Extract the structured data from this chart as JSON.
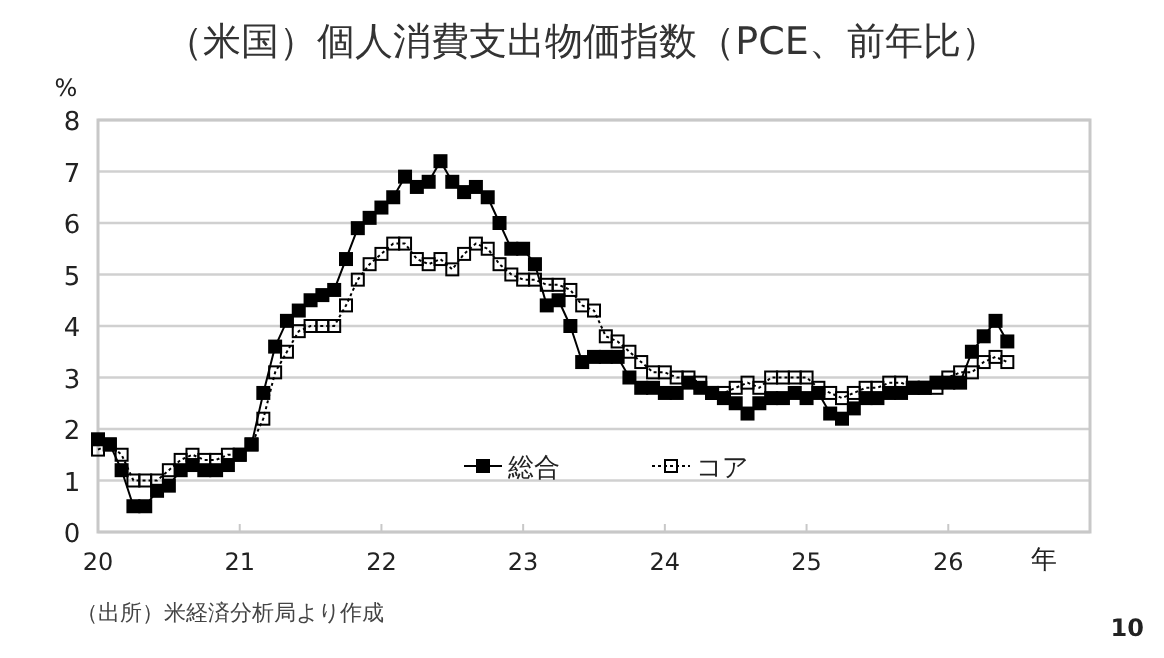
{
  "chart_data": {
    "type": "line",
    "title": "（米国）個人消費支出物価指数（PCE、前年比）",
    "ylabel": "%",
    "xlabel": "年",
    "xlim": [
      "2020-01",
      "2027-01"
    ],
    "xticks": [
      {
        "value": "2020-01",
        "label": "20"
      },
      {
        "value": "2021-01",
        "label": "21"
      },
      {
        "value": "2022-01",
        "label": "22"
      },
      {
        "value": "2023-01",
        "label": "23"
      },
      {
        "value": "2024-01",
        "label": "24"
      },
      {
        "value": "2025-01",
        "label": "25"
      },
      {
        "value": "2026-01",
        "label": "26"
      }
    ],
    "ylim": [
      0,
      8
    ],
    "yticks": [
      0,
      1,
      2,
      3,
      4,
      5,
      6,
      7,
      8
    ],
    "grid": "y",
    "legend": "bottom",
    "x": [
      "2020-01",
      "2020-02",
      "2020-03",
      "2020-04",
      "2020-05",
      "2020-06",
      "2020-07",
      "2020-08",
      "2020-09",
      "2020-10",
      "2020-11",
      "2020-12",
      "2021-01",
      "2021-02",
      "2021-03",
      "2021-04",
      "2021-05",
      "2021-06",
      "2021-07",
      "2021-08",
      "2021-09",
      "2021-10",
      "2021-11",
      "2021-12",
      "2022-01",
      "2022-02",
      "2022-03",
      "2022-04",
      "2022-05",
      "2022-06",
      "2022-07",
      "2022-08",
      "2022-09",
      "2022-10",
      "2022-11",
      "2022-12",
      "2023-01",
      "2023-02",
      "2023-03",
      "2023-04",
      "2023-05",
      "2023-06",
      "2023-07",
      "2023-08",
      "2023-09",
      "2023-10",
      "2023-11",
      "2023-12",
      "2024-01",
      "2024-02",
      "2024-03",
      "2024-04",
      "2024-05",
      "2024-06",
      "2024-07",
      "2024-08",
      "2024-09",
      "2024-10",
      "2024-11",
      "2024-12",
      "2025-01",
      "2025-02",
      "2025-03",
      "2025-04",
      "2025-05",
      "2025-06",
      "2025-07",
      "2025-08",
      "2025-09",
      "2025-10",
      "2025-11",
      "2025-12",
      "2026-01",
      "2026-02",
      "2026-03",
      "2026-04",
      "2026-05",
      "2026-06"
    ],
    "series": [
      {
        "name": "総合",
        "color": "#000000",
        "marker": "square",
        "line_style": "solid",
        "values": [
          1.8,
          1.7,
          1.2,
          0.5,
          0.5,
          0.8,
          0.9,
          1.2,
          1.3,
          1.2,
          1.2,
          1.3,
          1.5,
          1.7,
          2.7,
          3.6,
          4.1,
          4.3,
          4.5,
          4.6,
          4.7,
          5.3,
          5.9,
          6.1,
          6.3,
          6.5,
          6.9,
          6.7,
          6.8,
          7.2,
          6.8,
          6.6,
          6.7,
          6.5,
          6.0,
          5.5,
          5.5,
          5.2,
          4.4,
          4.5,
          4.0,
          3.3,
          3.4,
          3.4,
          3.4,
          3.0,
          2.8,
          2.8,
          2.7,
          2.7,
          2.9,
          2.8,
          2.7,
          2.6,
          2.5,
          2.3,
          2.5,
          2.6,
          2.6,
          2.7,
          2.6,
          2.7,
          2.3,
          2.2,
          2.4,
          2.6,
          2.6,
          2.7,
          2.7,
          2.8,
          2.8,
          2.9,
          2.9,
          2.9,
          3.5,
          3.8,
          4.1,
          3.7
        ]
      },
      {
        "name": "コア",
        "color": "#000000",
        "marker": "square",
        "line_style": "dotted",
        "values": [
          1.6,
          1.7,
          1.5,
          1.0,
          1.0,
          1.0,
          1.2,
          1.4,
          1.5,
          1.4,
          1.4,
          1.5,
          1.5,
          1.7,
          2.2,
          3.1,
          3.5,
          3.9,
          4.0,
          4.0,
          4.0,
          4.4,
          4.9,
          5.2,
          5.4,
          5.6,
          5.6,
          5.3,
          5.2,
          5.3,
          5.1,
          5.4,
          5.6,
          5.5,
          5.2,
          5.0,
          4.9,
          4.9,
          4.8,
          4.8,
          4.7,
          4.4,
          4.3,
          3.8,
          3.7,
          3.5,
          3.3,
          3.1,
          3.1,
          3.0,
          3.0,
          2.9,
          2.7,
          2.7,
          2.8,
          2.9,
          2.8,
          3.0,
          3.0,
          3.0,
          3.0,
          2.8,
          2.7,
          2.6,
          2.7,
          2.8,
          2.8,
          2.9,
          2.9,
          2.8,
          2.8,
          2.8,
          3.0,
          3.1,
          3.1,
          3.3,
          3.4,
          3.3
        ]
      }
    ],
    "annotations": [
      "（出所）米経済分析局より作成",
      "10"
    ]
  }
}
